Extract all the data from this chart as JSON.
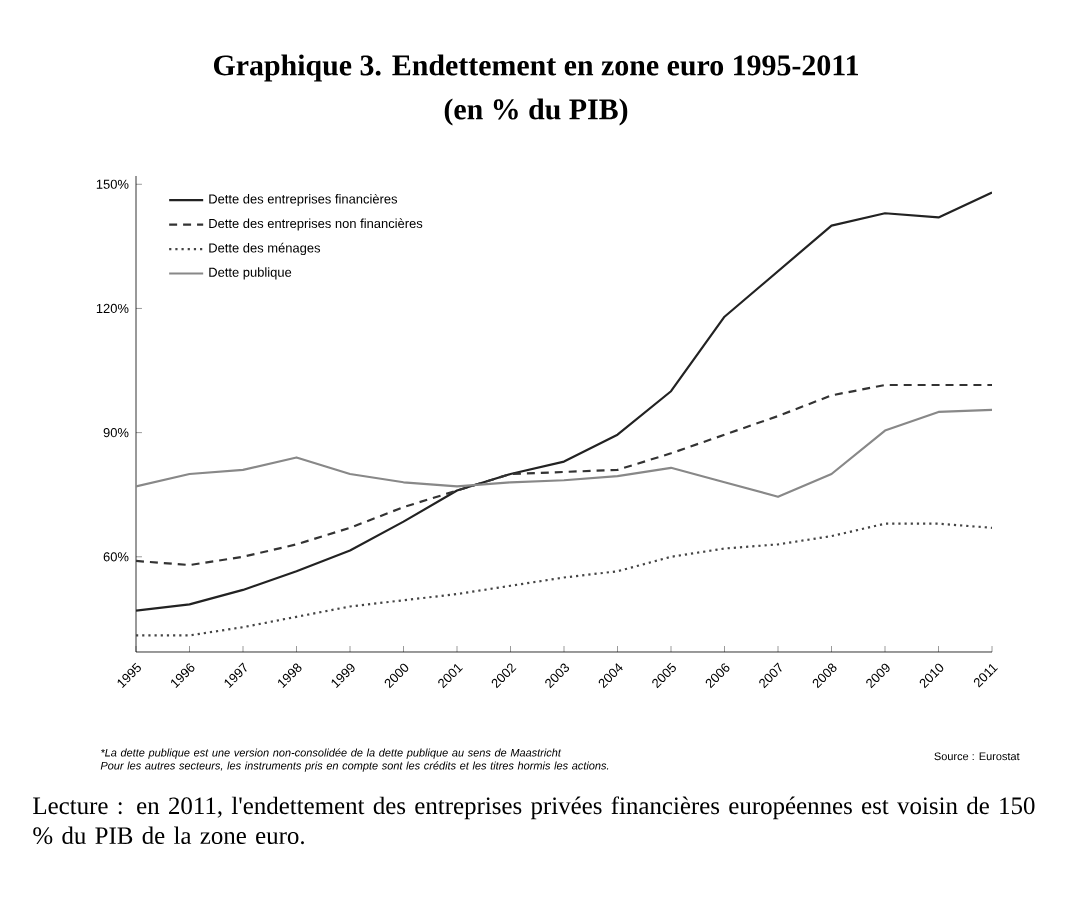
{
  "chart_data": {
    "type": "line",
    "title": "Graphique 3. Endettement en zone euro 1995-2011",
    "subtitle": "(en % du PIB)",
    "categories": [
      "1995",
      "1996",
      "1997",
      "1998",
      "1999",
      "2000",
      "2001",
      "2002",
      "2003",
      "2004",
      "2005",
      "2006",
      "2007",
      "2008",
      "2009",
      "2010",
      "2011"
    ],
    "series": [
      {
        "name": "Dette des entreprises financières",
        "color": "#222222",
        "line_style": "solid",
        "values": [
          47,
          48.5,
          52,
          56.5,
          61.5,
          68.5,
          76,
          80,
          83,
          89.5,
          100,
          118,
          129,
          140,
          143,
          142,
          148
        ]
      },
      {
        "name": "Dette des entreprises non financières",
        "color": "#333333",
        "line_style": "dashed",
        "values": [
          59,
          58,
          60,
          63,
          67,
          72,
          76,
          80,
          80.5,
          81,
          85,
          89.5,
          94,
          99,
          101.5,
          101.5,
          101.5
        ]
      },
      {
        "name": "Dette des ménages",
        "color": "#444444",
        "line_style": "dotted",
        "values": [
          41,
          41,
          43,
          45.5,
          48,
          49.5,
          51,
          53,
          55,
          56.5,
          60,
          62,
          63,
          65,
          68,
          68,
          67
        ]
      },
      {
        "name": "Dette publique",
        "color": "#888888",
        "line_style": "solid",
        "values": [
          77,
          80,
          81,
          84,
          80,
          78,
          77,
          78,
          78.5,
          79.5,
          81.5,
          78,
          74.5,
          80,
          90.5,
          95,
          95.5
        ]
      }
    ],
    "ylim": [
      37,
      152
    ],
    "yticks": [
      {
        "value": 60,
        "label": "60%"
      },
      {
        "value": 90,
        "label": "90%"
      },
      {
        "value": 120,
        "label": "120%"
      },
      {
        "value": 150,
        "label": "150%"
      }
    ],
    "legend": "top left",
    "grid": false,
    "annotations": [
      "*La dette publique est une version non-consolidée de la dette publique au sens de Maastricht",
      "Pour les autres secteurs, les instruments pris en compte sont les crédits et les titres hormis les actions.",
      "Source : Eurostat",
      "Lecture : en 2011, l'endettement des entreprises privées financières européennes est voisin de 150 % du PIB de la zone euro."
    ]
  }
}
